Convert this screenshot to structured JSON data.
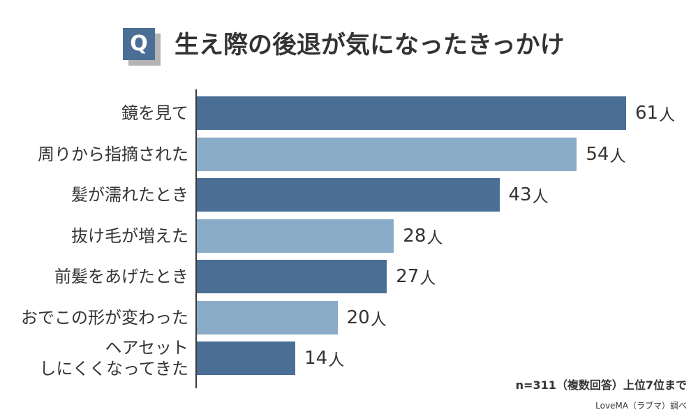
{
  "header": {
    "badge": "Q"
  },
  "colors": {
    "badge": "#4a6e94",
    "badge_shadow": "#b4b4b4",
    "text": "#333333",
    "axis": "#3a3a3a"
  },
  "chart_data": {
    "type": "bar",
    "orientation": "horizontal",
    "title": "生え際の後退が気になったきっかけ",
    "xlabel": "",
    "ylabel": "",
    "grid": false,
    "legend": "none",
    "categories": [
      "鏡を見て",
      "周りから指摘された",
      "髪が濡れたとき",
      "抜け毛が増えた",
      "前髪をあげたとき",
      "おでこの形が変わった",
      "ヘアセット\nしにくくなってきた"
    ],
    "values": [
      61,
      54,
      43,
      28,
      27,
      20,
      14
    ],
    "unit": "人",
    "bar_colors": [
      "#4a6e94",
      "#8aacc9",
      "#4a6e94",
      "#8aacc9",
      "#4a6e94",
      "#8aacc9",
      "#4a6e94"
    ]
  },
  "footnotes": {
    "sample": "n=311（複数回答）上位7位まで",
    "source": "LoveMA（ラブマ）調べ"
  }
}
